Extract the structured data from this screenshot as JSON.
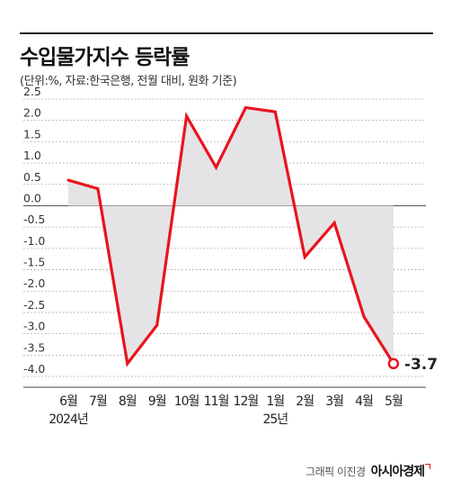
{
  "header": {
    "title": "수입물가지수 등락률",
    "subtitle": "(단위:%, 자료:한국은행, 전월 대비, 원화 기준)"
  },
  "credit": {
    "text": "그래픽 이진경",
    "brand": "아시아경제"
  },
  "colors": {
    "line": "#e8141e",
    "fill": "#e4e4e6",
    "grid": "#9a9a9a"
  },
  "chart_data": {
    "type": "area",
    "categories": [
      "6월",
      "7월",
      "8월",
      "9월",
      "10월",
      "11월",
      "12월",
      "1월",
      "2월",
      "3월",
      "4월",
      "5월"
    ],
    "year_labels": [
      {
        "index": 0,
        "text": "2024년"
      },
      {
        "index": 7,
        "text": "25년"
      }
    ],
    "series": [
      {
        "values": [
          0.6,
          0.4,
          -3.7,
          -2.8,
          2.1,
          0.9,
          2.3,
          2.2,
          -1.2,
          -0.4,
          -2.6,
          -3.7
        ]
      }
    ],
    "ylim": [
      -4.0,
      2.5
    ],
    "yticks": [
      2.5,
      2.0,
      1.5,
      1.0,
      0.5,
      0.0,
      -0.5,
      -1.0,
      -1.5,
      -2.0,
      -2.5,
      -3.0,
      -3.5,
      -4.0
    ],
    "ytick_labels": [
      "2.5",
      "2.0",
      "1.5",
      "1.0",
      "0.5",
      "0.0",
      "-0.5",
      "-1.0",
      "-1.5",
      "-2.0",
      "-2.5",
      "-3.0",
      "-3.5",
      "-4.0"
    ],
    "grid": true,
    "last_point_label": "-3.7"
  }
}
